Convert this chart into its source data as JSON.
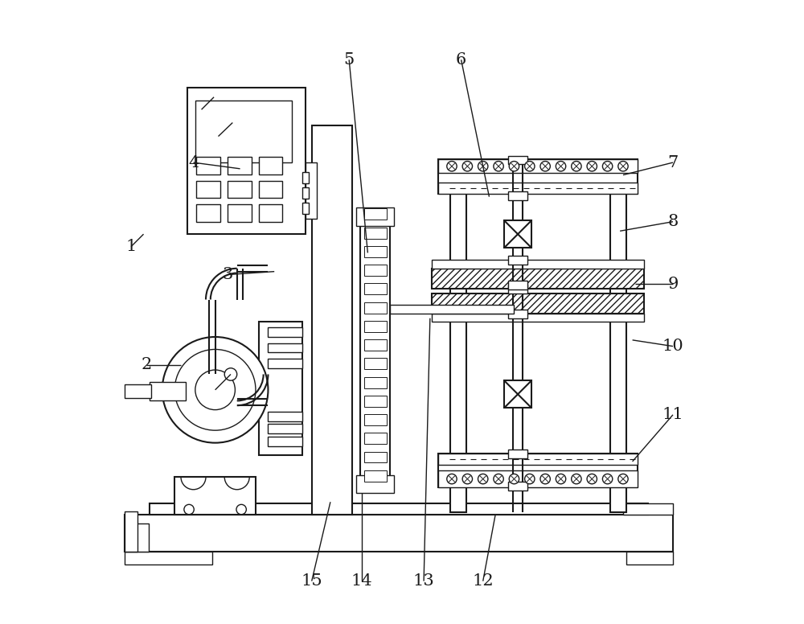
{
  "bg_color": "#ffffff",
  "lc": "#1a1a1a",
  "lw": 1.5,
  "lt": 1.0,
  "fig_w": 10.0,
  "fig_h": 7.76,
  "annotations": {
    "1": [
      0.085,
      0.625,
      0.065,
      0.605,
      0.065,
      0.605
    ],
    "2": [
      0.145,
      0.415,
      0.09,
      0.415,
      0.09,
      0.415
    ],
    "3": [
      0.295,
      0.565,
      0.22,
      0.56,
      0.22,
      0.56
    ],
    "4": [
      0.24,
      0.73,
      0.165,
      0.74,
      0.165,
      0.74
    ],
    "5": [
      0.445,
      0.595,
      0.415,
      0.905,
      0.415,
      0.905
    ],
    "6": [
      0.64,
      0.685,
      0.595,
      0.905,
      0.595,
      0.905
    ],
    "7": [
      0.855,
      0.72,
      0.935,
      0.74,
      0.935,
      0.74
    ],
    "8": [
      0.85,
      0.63,
      0.935,
      0.645,
      0.935,
      0.645
    ],
    "9": [
      0.875,
      0.545,
      0.935,
      0.545,
      0.935,
      0.545
    ],
    "10": [
      0.87,
      0.455,
      0.935,
      0.445,
      0.935,
      0.445
    ],
    "11": [
      0.87,
      0.26,
      0.935,
      0.335,
      0.935,
      0.335
    ],
    "12": [
      0.65,
      0.175,
      0.63,
      0.068,
      0.63,
      0.068
    ],
    "13": [
      0.545,
      0.49,
      0.535,
      0.068,
      0.535,
      0.068
    ],
    "14": [
      0.435,
      0.21,
      0.435,
      0.068,
      0.435,
      0.068
    ],
    "15": [
      0.385,
      0.195,
      0.355,
      0.068,
      0.355,
      0.068
    ]
  }
}
